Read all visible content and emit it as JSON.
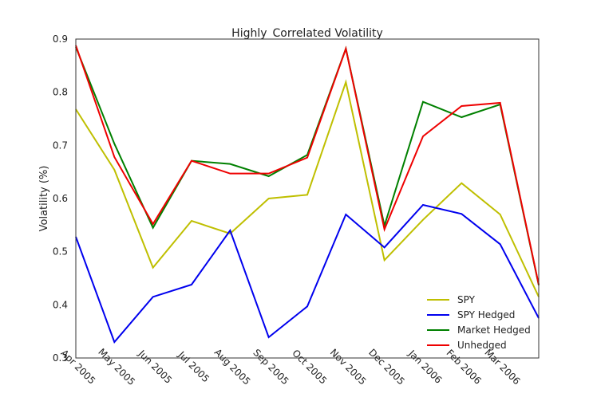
{
  "chart_data": {
    "type": "line",
    "title": "Highly_Correlated Volatility",
    "y_label": "Volatility (%)",
    "categories": [
      "Apr 2005",
      "May 2005",
      "Jun 2005",
      "Jul 2005",
      "Aug 2005",
      "Sep 2005",
      "Oct 2005",
      "Nov 2005",
      "Dec 2005",
      "Jan 2006",
      "Feb 2006",
      "Mar 2006",
      null
    ],
    "series": [
      {
        "name": "SPY",
        "color": "#bfbf00",
        "values": [
          0.768,
          0.654,
          0.47,
          0.558,
          0.534,
          0.6,
          0.607,
          0.819,
          0.484,
          0.56,
          0.629,
          0.57,
          0.415
        ]
      },
      {
        "name": "SPY Hedged",
        "color": "#0000ee",
        "values": [
          0.528,
          0.33,
          0.415,
          0.438,
          0.54,
          0.339,
          0.397,
          0.57,
          0.508,
          0.588,
          0.571,
          0.514,
          0.375
        ]
      },
      {
        "name": "Market Hedged",
        "color": "#008000",
        "values": [
          0.885,
          0.703,
          0.545,
          0.671,
          0.665,
          0.642,
          0.682,
          0.882,
          0.549,
          0.782,
          0.753,
          0.777,
          0.437
        ]
      },
      {
        "name": "Unhedged",
        "color": "#ee0000",
        "values": [
          0.888,
          0.678,
          0.552,
          0.671,
          0.647,
          0.647,
          0.677,
          0.882,
          0.542,
          0.717,
          0.774,
          0.78,
          0.438
        ]
      }
    ],
    "ylim": [
      0.3,
      0.9
    ],
    "yticks": [
      0.3,
      0.4,
      0.5,
      0.6,
      0.7,
      0.8,
      0.9
    ],
    "grid": false,
    "legend": "lower right"
  }
}
